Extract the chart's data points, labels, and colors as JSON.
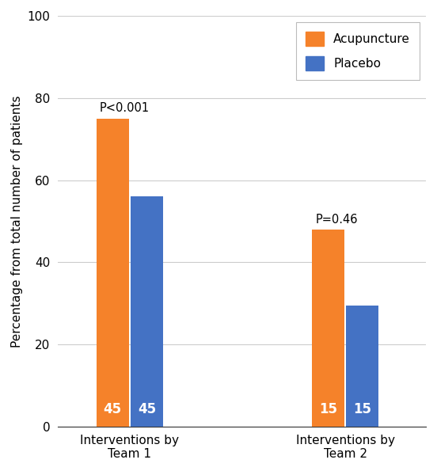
{
  "groups": [
    "Interventions by\nTeam 1",
    "Interventions by\nTeam 2"
  ],
  "acupuncture_values": [
    75.0,
    48.0
  ],
  "placebo_values": [
    56.0,
    29.5
  ],
  "acupuncture_labels": [
    "45",
    "15"
  ],
  "placebo_labels": [
    "45",
    "15"
  ],
  "p_values": [
    "P<0.001",
    "P=0.46"
  ],
  "acupuncture_color": "#F5822A",
  "placebo_color": "#4472C4",
  "ylabel": "Percentage from total number of patients",
  "ylim": [
    0,
    100
  ],
  "yticks": [
    0,
    20,
    40,
    60,
    80,
    100
  ],
  "bar_width": 0.18,
  "group_centers": [
    1.0,
    2.2
  ],
  "legend_labels": [
    "Acupuncture",
    "Placebo"
  ],
  "label_fontsize": 11,
  "tick_fontsize": 11,
  "pval_fontsize": 10.5,
  "bar_label_fontsize": 12,
  "background_color": "#ffffff"
}
